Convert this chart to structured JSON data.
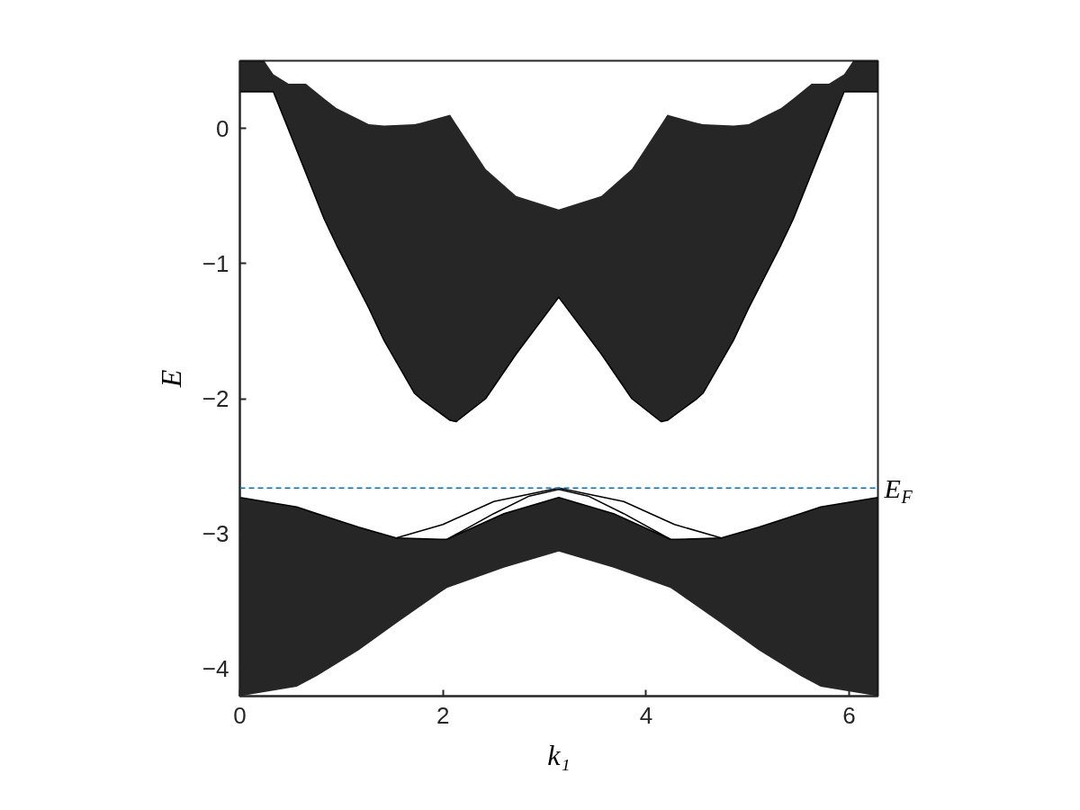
{
  "chart_data": {
    "type": "line",
    "xlabel": "k₁",
    "ylabel": "E",
    "xlim": [
      0,
      6.2832
    ],
    "ylim": [
      -4.2,
      0.5
    ],
    "xticks": [
      0,
      2,
      4,
      6
    ],
    "yticks": [
      -4,
      -3,
      -2,
      -1,
      0
    ],
    "grid": false,
    "line_style": "solid",
    "ref_lines": [
      {
        "axis": "y",
        "value": -2.66,
        "label": "E$_{F}$",
        "color": "#0072bd",
        "line_style": "dashed"
      }
    ],
    "series": [
      {
        "type": "line",
        "color": "#000000",
        "x": [
          0,
          0.24,
          0.33,
          0.48,
          0.65,
          0.83,
          0.95,
          1.27,
          1.42,
          1.72,
          1.78,
          2.07,
          2.13,
          2.42,
          2.72,
          3.14,
          3.56,
          3.86,
          4.15,
          4.21,
          4.5,
          4.56,
          4.86,
          5.01,
          5.33,
          5.45,
          5.63,
          5.8,
          5.95,
          6.04,
          6.2832
        ],
        "values": [
          0.27,
          0.27,
          0.27,
          -0.01,
          -0.33,
          -0.67,
          -0.86,
          -1.33,
          -1.57,
          -1.96,
          -2.0,
          -2.16,
          -2.17,
          -2.0,
          -1.67,
          -1.25,
          -1.67,
          -2.0,
          -2.17,
          -2.16,
          -2.0,
          -1.96,
          -1.57,
          -1.33,
          -0.86,
          -0.67,
          -0.33,
          -0.01,
          0.27,
          0.27,
          0.27
        ],
        "lower": [
          0.27,
          0.27,
          0.27,
          -0.01,
          -0.33,
          -0.67,
          -0.86,
          -1.33,
          -1.57,
          -1.96,
          -2.0,
          -2.16,
          -2.17,
          -2.0,
          -1.67,
          -1.25,
          -1.67,
          -2.0,
          -2.17,
          -2.16,
          -2.0,
          -1.96,
          -1.57,
          -1.33,
          -0.86,
          -0.67,
          -0.33,
          -0.01,
          0.27,
          0.27,
          0.27
        ],
        "upper": [
          0.5,
          0.5,
          0.4,
          0.33,
          0.33,
          0.22,
          0.15,
          0.03,
          0.02,
          0.03,
          0.04,
          0.1,
          0.03,
          -0.3,
          -0.5,
          -0.6,
          -0.5,
          -0.3,
          0.03,
          0.1,
          0.04,
          0.03,
          0.02,
          0.03,
          0.15,
          0.22,
          0.33,
          0.33,
          0.4,
          0.5,
          0.5
        ]
      },
      {
        "type": "line",
        "color": "#000000",
        "x": [
          0,
          0.56,
          0.76,
          1.17,
          1.54,
          1.98,
          2.04,
          2.6,
          3.14,
          3.68,
          4.24,
          4.3,
          4.74,
          5.11,
          5.52,
          5.72,
          6.2832
        ],
        "values": [
          -2.73,
          -2.8,
          -2.85,
          -2.95,
          -3.03,
          -3.04,
          -3.04,
          -2.85,
          -2.73,
          -2.85,
          -3.04,
          -3.04,
          -3.03,
          -2.95,
          -2.85,
          -2.8,
          -2.73
        ],
        "lower": [
          -4.2,
          -4.13,
          -4.05,
          -3.86,
          -3.66,
          -3.43,
          -3.4,
          -3.25,
          -3.13,
          -3.25,
          -3.4,
          -3.43,
          -3.66,
          -3.86,
          -4.05,
          -4.13,
          -4.2
        ],
        "upper": [
          -2.73,
          -2.8,
          -2.85,
          -2.95,
          -3.03,
          -3.04,
          -3.04,
          -2.85,
          -2.73,
          -2.85,
          -3.04,
          -3.04,
          -3.03,
          -2.95,
          -2.85,
          -2.8,
          -2.73
        ]
      },
      {
        "type": "line",
        "color": "#000000",
        "x": [
          1.54,
          2.0,
          2.5,
          3.14,
          3.78,
          4.28,
          4.74
        ],
        "values": [
          -3.03,
          -2.93,
          -2.76,
          -2.66,
          -2.76,
          -2.93,
          -3.03
        ]
      },
      {
        "type": "line",
        "color": "#000000",
        "x": [
          2.04,
          2.5,
          2.85,
          3.14,
          3.43,
          3.78,
          4.24
        ],
        "values": [
          -3.04,
          -2.85,
          -2.72,
          -2.67,
          -2.72,
          -2.85,
          -3.04
        ]
      }
    ]
  }
}
